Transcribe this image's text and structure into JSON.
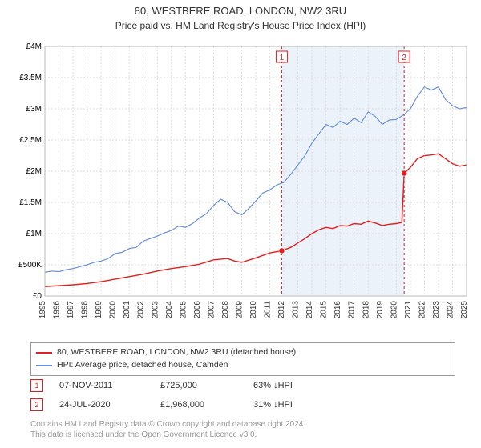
{
  "title": "80, WESTBERE ROAD, LONDON, NW2 3RU",
  "subtitle": "Price paid vs. HM Land Registry's House Price Index (HPI)",
  "chart": {
    "type": "line",
    "background_color": "#ffffff",
    "shade_color": "#eaf1fa",
    "grid_color": "#dddddd",
    "x_start_year": 1995,
    "x_end_year": 2025,
    "x_tick_years": [
      1995,
      1996,
      1997,
      1998,
      1999,
      2000,
      2001,
      2002,
      2003,
      2004,
      2005,
      2006,
      2007,
      2008,
      2009,
      2010,
      2011,
      2012,
      2013,
      2014,
      2015,
      2016,
      2017,
      2018,
      2019,
      2020,
      2021,
      2022,
      2023,
      2024,
      2025
    ],
    "ylim": [
      0,
      4000000
    ],
    "y_ticks": [
      0,
      500000,
      1000000,
      1500000,
      2000000,
      2500000,
      3000000,
      3500000,
      4000000
    ],
    "y_tick_labels": [
      "£0",
      "£500K",
      "£1M",
      "£1.5M",
      "£2M",
      "£2.5M",
      "£3M",
      "£3.5M",
      "£4M"
    ],
    "shade_from_year": 2011.85,
    "shade_to_year": 2020.56,
    "series": {
      "blue": {
        "color": "#6a8fd8",
        "label": "HPI: Average price, detached house, Camden",
        "points": [
          [
            1995.0,
            380000
          ],
          [
            1995.5,
            400000
          ],
          [
            1996.0,
            390000
          ],
          [
            1996.5,
            420000
          ],
          [
            1997.0,
            440000
          ],
          [
            1997.5,
            470000
          ],
          [
            1998.0,
            500000
          ],
          [
            1998.5,
            540000
          ],
          [
            1999.0,
            560000
          ],
          [
            1999.5,
            600000
          ],
          [
            2000.0,
            680000
          ],
          [
            2000.5,
            700000
          ],
          [
            2001.0,
            760000
          ],
          [
            2001.5,
            780000
          ],
          [
            2002.0,
            880000
          ],
          [
            2002.5,
            920000
          ],
          [
            2003.0,
            960000
          ],
          [
            2003.5,
            1010000
          ],
          [
            2004.0,
            1050000
          ],
          [
            2004.5,
            1120000
          ],
          [
            2005.0,
            1100000
          ],
          [
            2005.5,
            1160000
          ],
          [
            2006.0,
            1250000
          ],
          [
            2006.5,
            1320000
          ],
          [
            2007.0,
            1450000
          ],
          [
            2007.5,
            1550000
          ],
          [
            2008.0,
            1500000
          ],
          [
            2008.5,
            1350000
          ],
          [
            2009.0,
            1300000
          ],
          [
            2009.5,
            1400000
          ],
          [
            2010.0,
            1520000
          ],
          [
            2010.5,
            1650000
          ],
          [
            2011.0,
            1700000
          ],
          [
            2011.5,
            1780000
          ],
          [
            2012.0,
            1820000
          ],
          [
            2012.5,
            1950000
          ],
          [
            2013.0,
            2100000
          ],
          [
            2013.5,
            2250000
          ],
          [
            2014.0,
            2450000
          ],
          [
            2014.5,
            2600000
          ],
          [
            2015.0,
            2750000
          ],
          [
            2015.5,
            2700000
          ],
          [
            2016.0,
            2800000
          ],
          [
            2016.5,
            2750000
          ],
          [
            2017.0,
            2850000
          ],
          [
            2017.5,
            2780000
          ],
          [
            2018.0,
            2950000
          ],
          [
            2018.5,
            2880000
          ],
          [
            2019.0,
            2750000
          ],
          [
            2019.5,
            2820000
          ],
          [
            2020.0,
            2830000
          ],
          [
            2020.5,
            2900000
          ],
          [
            2021.0,
            3000000
          ],
          [
            2021.5,
            3200000
          ],
          [
            2022.0,
            3350000
          ],
          [
            2022.5,
            3300000
          ],
          [
            2023.0,
            3350000
          ],
          [
            2023.5,
            3150000
          ],
          [
            2024.0,
            3050000
          ],
          [
            2024.5,
            3000000
          ],
          [
            2025.0,
            3020000
          ]
        ]
      },
      "red": {
        "color": "#e02020",
        "label": "80, WESTBERE ROAD, LONDON, NW2 3RU (detached house)",
        "points": [
          [
            1995.0,
            150000
          ],
          [
            1996.0,
            165000
          ],
          [
            1997.0,
            180000
          ],
          [
            1998.0,
            200000
          ],
          [
            1999.0,
            230000
          ],
          [
            2000.0,
            270000
          ],
          [
            2001.0,
            310000
          ],
          [
            2002.0,
            350000
          ],
          [
            2003.0,
            400000
          ],
          [
            2004.0,
            440000
          ],
          [
            2005.0,
            470000
          ],
          [
            2006.0,
            510000
          ],
          [
            2007.0,
            580000
          ],
          [
            2008.0,
            600000
          ],
          [
            2008.5,
            560000
          ],
          [
            2009.0,
            540000
          ],
          [
            2010.0,
            610000
          ],
          [
            2011.0,
            690000
          ],
          [
            2011.85,
            725000
          ],
          [
            2012.5,
            780000
          ],
          [
            2013.0,
            850000
          ],
          [
            2013.5,
            920000
          ],
          [
            2014.0,
            1000000
          ],
          [
            2014.5,
            1060000
          ],
          [
            2015.0,
            1100000
          ],
          [
            2015.5,
            1080000
          ],
          [
            2016.0,
            1130000
          ],
          [
            2016.5,
            1120000
          ],
          [
            2017.0,
            1160000
          ],
          [
            2017.5,
            1150000
          ],
          [
            2018.0,
            1200000
          ],
          [
            2018.5,
            1170000
          ],
          [
            2019.0,
            1130000
          ],
          [
            2019.5,
            1150000
          ],
          [
            2020.0,
            1160000
          ],
          [
            2020.4,
            1180000
          ],
          [
            2020.56,
            1968000
          ],
          [
            2021.0,
            2060000
          ],
          [
            2021.5,
            2200000
          ],
          [
            2022.0,
            2250000
          ],
          [
            2022.5,
            2260000
          ],
          [
            2023.0,
            2280000
          ],
          [
            2023.5,
            2200000
          ],
          [
            2024.0,
            2120000
          ],
          [
            2024.5,
            2080000
          ],
          [
            2025.0,
            2100000
          ]
        ]
      }
    },
    "markers": [
      {
        "id": "1",
        "year": 2011.85,
        "color": "#e02020",
        "dot_value": 725000
      },
      {
        "id": "2",
        "year": 2020.56,
        "color": "#e02020",
        "dot_value": 1968000
      }
    ]
  },
  "legend": [
    {
      "color": "#e02020",
      "label": "80, WESTBERE ROAD, LONDON, NW2 3RU (detached house)"
    },
    {
      "color": "#6a8fd8",
      "label": "HPI: Average price, detached house, Camden"
    }
  ],
  "records": [
    {
      "id": "1",
      "color": "#e02020",
      "date": "07-NOV-2011",
      "price": "£725,000",
      "pct": "63%",
      "direction": "down",
      "vs": "HPI"
    },
    {
      "id": "2",
      "color": "#e02020",
      "date": "24-JUL-2020",
      "price": "£1,968,000",
      "pct": "31%",
      "direction": "down",
      "vs": "HPI"
    }
  ],
  "footer_line1": "Contains HM Land Registry data © Crown copyright and database right 2024.",
  "footer_line2": "This data is licensed under the Open Government Licence v3.0."
}
